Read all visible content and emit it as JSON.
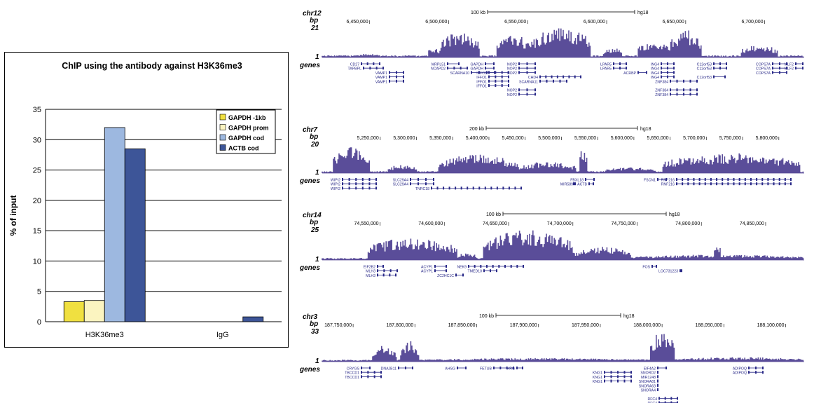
{
  "colors": {
    "gapdh_1kb": "#f0e040",
    "gapdh_prom": "#fbf4c0",
    "gapdh_cod": "#9db8e0",
    "actb_cod": "#3d5598",
    "coverage": "#5a4d99",
    "gene": "#2a2a88"
  },
  "chart_data": [
    {
      "type": "bar",
      "title": "ChIP using the antibody against H3K36me3",
      "ylabel": "% of input",
      "xlabel": "",
      "categories": [
        "H3K36me3",
        "IgG"
      ],
      "ylim": [
        0,
        35
      ],
      "yticks": [
        0,
        5,
        10,
        15,
        20,
        25,
        30,
        35
      ],
      "grid": true,
      "legend": "top-right",
      "series": [
        {
          "name": "GAPDH -1kb",
          "values": [
            3.3,
            0.0
          ]
        },
        {
          "name": "GAPDH prom",
          "values": [
            3.5,
            0.0
          ]
        },
        {
          "name": "GAPDH cod",
          "values": [
            32.0,
            0.0
          ]
        },
        {
          "name": "ACTB cod",
          "values": [
            28.5,
            0.8
          ]
        }
      ]
    },
    {
      "type": "area",
      "chrom": "chr12",
      "scale_label": "100 kb",
      "assembly": "hg18",
      "bp_max": "21",
      "bp_min": "1",
      "xlim": [
        6420000,
        6725000
      ],
      "ticks": [
        "6,450,000",
        "6,500,000",
        "6,550,000",
        "6,600,000",
        "6,650,000",
        "6,700,000"
      ],
      "tick_values": [
        6450000,
        6500000,
        6550000,
        6600000,
        6650000,
        6700000
      ],
      "peaks": [
        {
          "start": 6440000,
          "end": 6458000,
          "height": 0.12
        },
        {
          "start": 6487000,
          "end": 6495000,
          "height": 0.35
        },
        {
          "start": 6495000,
          "end": 6520000,
          "height": 0.85
        },
        {
          "start": 6530000,
          "end": 6552000,
          "height": 0.75
        },
        {
          "start": 6552000,
          "end": 6590000,
          "height": 1.0
        },
        {
          "start": 6598000,
          "end": 6610000,
          "height": 0.35
        },
        {
          "start": 6620000,
          "end": 6640000,
          "height": 0.55
        },
        {
          "start": 6640000,
          "end": 6660000,
          "height": 0.9
        },
        {
          "start": 6685000,
          "end": 6708000,
          "height": 0.45
        }
      ],
      "genes": [
        "CD27",
        "TAPBPL",
        "VAMP1",
        "VAMP1",
        "VAMP1",
        "MRPL51",
        "NCAPD2",
        "SCARNA10",
        "GAPDH",
        "GAPDH",
        "NOP2",
        "NOP2",
        "NOP2",
        "IFFO1",
        "IFFO1",
        "IFFO1",
        "IFFO1",
        "NOP2",
        "NOP2",
        "CHD4",
        "SCARNA11",
        "LPAR5",
        "LPAR5",
        "ACRBP",
        "ING4",
        "ING4",
        "ING4",
        "ING4",
        "ZNF384",
        "ZNF384",
        "ZNF384",
        "C12orf53",
        "C12orf53",
        "C12orf53",
        "COPS7A",
        "COPS7A",
        "COPS7A",
        "MLF2",
        "MLF2"
      ]
    },
    {
      "type": "area",
      "chrom": "chr7",
      "scale_label": "200 kb",
      "assembly": "hg18",
      "bp_max": "20",
      "bp_min": "1",
      "xlim": [
        5170000,
        5835000
      ],
      "ticks": [
        "5,250,000",
        "5,300,000",
        "5,350,000",
        "5,400,000",
        "5,450,000",
        "5,500,000",
        "5,550,000",
        "5,600,000",
        "5,650,000",
        "5,700,000",
        "5,750,000",
        "5,800,000"
      ],
      "tick_values": [
        5250000,
        5300000,
        5350000,
        5400000,
        5450000,
        5500000,
        5550000,
        5600000,
        5650000,
        5700000,
        5750000,
        5800000
      ],
      "peaks": [
        {
          "start": 5185000,
          "end": 5235000,
          "height": 0.9
        },
        {
          "start": 5260000,
          "end": 5300000,
          "height": 0.3
        },
        {
          "start": 5330000,
          "end": 5440000,
          "height": 0.65
        },
        {
          "start": 5440000,
          "end": 5520000,
          "height": 0.4
        },
        {
          "start": 5525000,
          "end": 5535000,
          "height": 1.0
        },
        {
          "start": 5560000,
          "end": 5630000,
          "height": 0.2
        },
        {
          "start": 5640000,
          "end": 5830000,
          "height": 0.7
        }
      ],
      "genes": [
        "WIPI2",
        "WIPI2",
        "WIPI2",
        "SLC29A4",
        "SLC29A4",
        "TNRC18",
        "FBXL18",
        "MIR589",
        "ACTB",
        "FSCN1",
        "RNF216",
        "RNF216"
      ]
    },
    {
      "type": "area",
      "chrom": "chr14",
      "scale_label": "100 kb",
      "assembly": "hg18",
      "bp_max": "25",
      "bp_min": "1",
      "xlim": [
        74505000,
        74880000
      ],
      "ticks": [
        "74,550,000",
        "74,600,000",
        "74,650,000",
        "74,700,000",
        "74,750,000",
        "74,800,000",
        "74,850,000"
      ],
      "tick_values": [
        74550000,
        74600000,
        74650000,
        74700000,
        74750000,
        74800000,
        74850000
      ],
      "peaks": [
        {
          "start": 74540000,
          "end": 74610000,
          "height": 0.75
        },
        {
          "start": 74610000,
          "end": 74625000,
          "height": 0.25
        },
        {
          "start": 74630000,
          "end": 74700000,
          "height": 1.0
        },
        {
          "start": 74700000,
          "end": 74745000,
          "height": 0.45
        },
        {
          "start": 74745000,
          "end": 74880000,
          "height": 0.18
        },
        {
          "start": 74810000,
          "end": 74815000,
          "height": 0.6
        }
      ],
      "genes": [
        "EIF2B2",
        "MLH3",
        "MLH3",
        "ACYP1",
        "ACYP1",
        "ZC2HC1C",
        "NEK9",
        "TMED10",
        "FOS",
        "LOC731223"
      ]
    },
    {
      "type": "area",
      "chrom": "chr3",
      "scale_label": "100 kb",
      "assembly": "hg18",
      "bp_max": "33",
      "bp_min": "1",
      "xlim": [
        187725000,
        188115000
      ],
      "ticks": [
        "187,750,000",
        "187,800,000",
        "187,850,000",
        "187,900,000",
        "187,950,000",
        "188,000,000",
        "188,050,000",
        "188,100,000"
      ],
      "tick_values": [
        187750000,
        187800000,
        187850000,
        187900000,
        187950000,
        188000000,
        188050000,
        188100000
      ],
      "peaks": [
        {
          "start": 187765000,
          "end": 187785000,
          "height": 0.55
        },
        {
          "start": 187788000,
          "end": 187803000,
          "height": 0.7
        },
        {
          "start": 187805000,
          "end": 187990000,
          "height": 0.12
        },
        {
          "start": 187990000,
          "end": 188010000,
          "height": 1.0
        },
        {
          "start": 188010000,
          "end": 188115000,
          "height": 0.15
        }
      ],
      "genes": [
        "CRYGS",
        "TBCCD1",
        "TBCCD1",
        "DNAJB11",
        "AHSG",
        "FETUB",
        "HRG",
        "KNG1",
        "KNG1",
        "KNG1",
        "EIF4A2",
        "SNORD2",
        "MIR1248",
        "SNORA81",
        "SNORA63",
        "SNORA4",
        "RFC4",
        "RFC4",
        "ADIPOQ",
        "ADIPOQ"
      ]
    }
  ]
}
